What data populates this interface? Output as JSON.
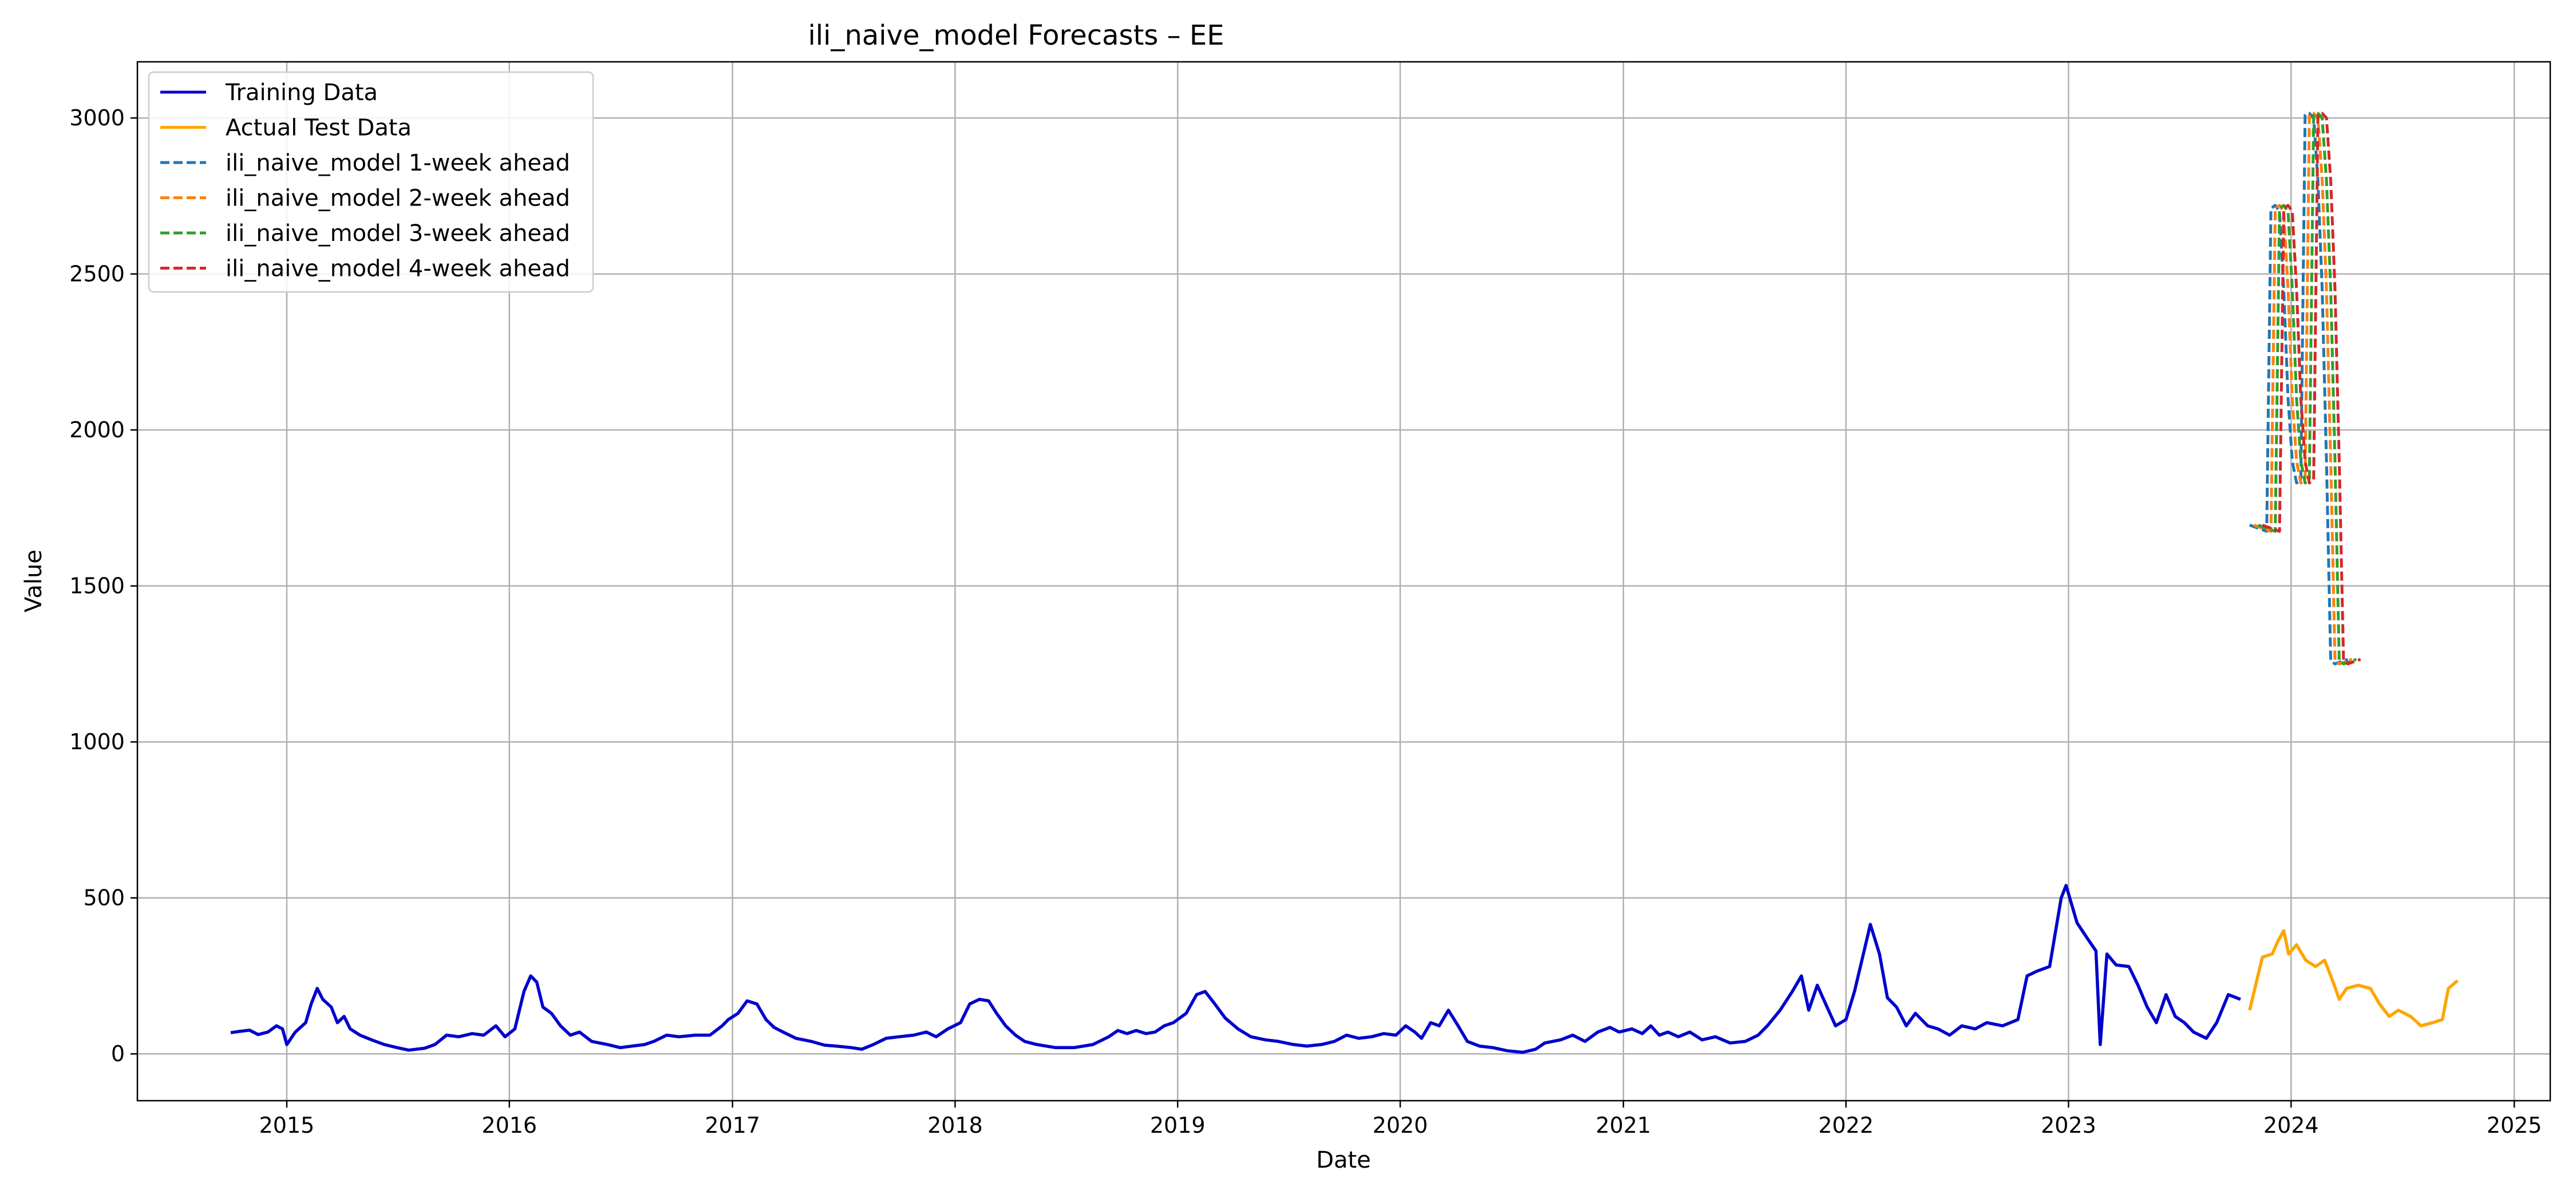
{
  "chart_data": {
    "type": "line",
    "title": "ili_naive_model Forecasts – EE",
    "xlabel": "Date",
    "ylabel": "Value",
    "x_axis_type": "date",
    "xlim": [
      "2014-05-01",
      "2025-03-01"
    ],
    "ylim": [
      -150,
      3180
    ],
    "x_ticks": [
      {
        "date": "2015-01-01",
        "label": "2015"
      },
      {
        "date": "2016-01-01",
        "label": "2016"
      },
      {
        "date": "2017-01-01",
        "label": "2017"
      },
      {
        "date": "2018-01-01",
        "label": "2018"
      },
      {
        "date": "2019-01-01",
        "label": "2019"
      },
      {
        "date": "2020-01-01",
        "label": "2020"
      },
      {
        "date": "2021-01-01",
        "label": "2021"
      },
      {
        "date": "2022-01-01",
        "label": "2022"
      },
      {
        "date": "2023-01-01",
        "label": "2023"
      },
      {
        "date": "2024-01-01",
        "label": "2024"
      },
      {
        "date": "2025-01-01",
        "label": "2025"
      }
    ],
    "y_ticks": [
      0,
      500,
      1000,
      1500,
      2000,
      2500,
      3000
    ],
    "grid": true,
    "legend_position": "top-left",
    "series": [
      {
        "name": "Training Data",
        "color": "#0000cd",
        "style": "solid",
        "points": [
          [
            "2014-10-01",
            68
          ],
          [
            "2014-10-15",
            72
          ],
          [
            "2014-11-01",
            76
          ],
          [
            "2014-11-15",
            62
          ],
          [
            "2014-12-01",
            70
          ],
          [
            "2014-12-15",
            90
          ],
          [
            "2014-12-25",
            80
          ],
          [
            "2015-01-01",
            30
          ],
          [
            "2015-01-15",
            70
          ],
          [
            "2015-02-01",
            100
          ],
          [
            "2015-02-10",
            160
          ],
          [
            "2015-02-20",
            210
          ],
          [
            "2015-03-01",
            175
          ],
          [
            "2015-03-15",
            150
          ],
          [
            "2015-03-25",
            100
          ],
          [
            "2015-04-05",
            120
          ],
          [
            "2015-04-15",
            80
          ],
          [
            "2015-05-01",
            60
          ],
          [
            "2015-05-20",
            45
          ],
          [
            "2015-06-10",
            30
          ],
          [
            "2015-07-01",
            20
          ],
          [
            "2015-07-20",
            12
          ],
          [
            "2015-08-15",
            18
          ],
          [
            "2015-09-01",
            30
          ],
          [
            "2015-09-20",
            60
          ],
          [
            "2015-10-10",
            55
          ],
          [
            "2015-11-01",
            65
          ],
          [
            "2015-11-20",
            60
          ],
          [
            "2015-12-10",
            90
          ],
          [
            "2015-12-25",
            55
          ],
          [
            "2016-01-10",
            80
          ],
          [
            "2016-01-25",
            200
          ],
          [
            "2016-02-05",
            250
          ],
          [
            "2016-02-15",
            230
          ],
          [
            "2016-02-25",
            150
          ],
          [
            "2016-03-10",
            130
          ],
          [
            "2016-03-25",
            90
          ],
          [
            "2016-04-10",
            60
          ],
          [
            "2016-04-25",
            70
          ],
          [
            "2016-05-15",
            40
          ],
          [
            "2016-06-10",
            30
          ],
          [
            "2016-07-01",
            20
          ],
          [
            "2016-07-20",
            25
          ],
          [
            "2016-08-10",
            30
          ],
          [
            "2016-08-25",
            40
          ],
          [
            "2016-09-15",
            60
          ],
          [
            "2016-10-05",
            55
          ],
          [
            "2016-11-01",
            60
          ],
          [
            "2016-11-25",
            60
          ],
          [
            "2016-12-15",
            90
          ],
          [
            "2016-12-25",
            110
          ],
          [
            "2017-01-10",
            130
          ],
          [
            "2017-01-25",
            170
          ],
          [
            "2017-02-10",
            160
          ],
          [
            "2017-02-25",
            110
          ],
          [
            "2017-03-10",
            85
          ],
          [
            "2017-03-25",
            70
          ],
          [
            "2017-04-15",
            50
          ],
          [
            "2017-05-10",
            40
          ],
          [
            "2017-06-01",
            28
          ],
          [
            "2017-06-20",
            25
          ],
          [
            "2017-07-15",
            20
          ],
          [
            "2017-08-01",
            15
          ],
          [
            "2017-08-20",
            30
          ],
          [
            "2017-09-10",
            50
          ],
          [
            "2017-10-01",
            55
          ],
          [
            "2017-10-25",
            60
          ],
          [
            "2017-11-15",
            70
          ],
          [
            "2017-12-01",
            55
          ],
          [
            "2017-12-20",
            80
          ],
          [
            "2018-01-10",
            100
          ],
          [
            "2018-01-25",
            160
          ],
          [
            "2018-02-10",
            175
          ],
          [
            "2018-02-25",
            170
          ],
          [
            "2018-03-10",
            130
          ],
          [
            "2018-03-25",
            90
          ],
          [
            "2018-04-10",
            60
          ],
          [
            "2018-04-25",
            40
          ],
          [
            "2018-05-15",
            30
          ],
          [
            "2018-06-15",
            20
          ],
          [
            "2018-07-15",
            20
          ],
          [
            "2018-08-15",
            30
          ],
          [
            "2018-09-10",
            55
          ],
          [
            "2018-09-25",
            75
          ],
          [
            "2018-10-10",
            65
          ],
          [
            "2018-10-25",
            75
          ],
          [
            "2018-11-10",
            65
          ],
          [
            "2018-11-25",
            70
          ],
          [
            "2018-12-10",
            90
          ],
          [
            "2018-12-25",
            100
          ],
          [
            "2019-01-15",
            130
          ],
          [
            "2019-02-01",
            190
          ],
          [
            "2019-02-15",
            200
          ],
          [
            "2019-03-01",
            165
          ],
          [
            "2019-03-20",
            115
          ],
          [
            "2019-04-10",
            80
          ],
          [
            "2019-05-01",
            55
          ],
          [
            "2019-05-25",
            45
          ],
          [
            "2019-06-15",
            40
          ],
          [
            "2019-07-10",
            30
          ],
          [
            "2019-08-01",
            25
          ],
          [
            "2019-08-25",
            30
          ],
          [
            "2019-09-15",
            40
          ],
          [
            "2019-10-05",
            60
          ],
          [
            "2019-10-25",
            50
          ],
          [
            "2019-11-15",
            55
          ],
          [
            "2019-12-05",
            65
          ],
          [
            "2019-12-25",
            60
          ],
          [
            "2020-01-10",
            90
          ],
          [
            "2020-01-25",
            70
          ],
          [
            "2020-02-05",
            50
          ],
          [
            "2020-02-20",
            100
          ],
          [
            "2020-03-05",
            90
          ],
          [
            "2020-03-20",
            140
          ],
          [
            "2020-04-05",
            90
          ],
          [
            "2020-04-20",
            40
          ],
          [
            "2020-05-10",
            25
          ],
          [
            "2020-06-01",
            20
          ],
          [
            "2020-06-25",
            10
          ],
          [
            "2020-07-20",
            5
          ],
          [
            "2020-08-10",
            15
          ],
          [
            "2020-08-25",
            35
          ],
          [
            "2020-09-20",
            45
          ],
          [
            "2020-10-10",
            60
          ],
          [
            "2020-10-30",
            40
          ],
          [
            "2020-11-20",
            70
          ],
          [
            "2020-12-10",
            85
          ],
          [
            "2020-12-25",
            70
          ],
          [
            "2021-01-15",
            80
          ],
          [
            "2021-02-01",
            65
          ],
          [
            "2021-02-15",
            90
          ],
          [
            "2021-03-01",
            60
          ],
          [
            "2021-03-15",
            70
          ],
          [
            "2021-04-01",
            55
          ],
          [
            "2021-04-20",
            70
          ],
          [
            "2021-05-10",
            45
          ],
          [
            "2021-06-01",
            55
          ],
          [
            "2021-06-25",
            35
          ],
          [
            "2021-07-20",
            40
          ],
          [
            "2021-08-10",
            60
          ],
          [
            "2021-08-25",
            90
          ],
          [
            "2021-09-15",
            140
          ],
          [
            "2021-10-05",
            200
          ],
          [
            "2021-10-20",
            250
          ],
          [
            "2021-11-01",
            140
          ],
          [
            "2021-11-15",
            220
          ],
          [
            "2021-12-01",
            150
          ],
          [
            "2021-12-15",
            90
          ],
          [
            "2022-01-01",
            110
          ],
          [
            "2022-01-15",
            200
          ],
          [
            "2022-02-01",
            340
          ],
          [
            "2022-02-10",
            415
          ],
          [
            "2022-02-25",
            320
          ],
          [
            "2022-03-10",
            180
          ],
          [
            "2022-03-25",
            150
          ],
          [
            "2022-04-10",
            90
          ],
          [
            "2022-04-25",
            130
          ],
          [
            "2022-05-15",
            90
          ],
          [
            "2022-06-01",
            80
          ],
          [
            "2022-06-20",
            60
          ],
          [
            "2022-07-10",
            90
          ],
          [
            "2022-08-01",
            80
          ],
          [
            "2022-08-20",
            100
          ],
          [
            "2022-09-15",
            90
          ],
          [
            "2022-10-10",
            110
          ],
          [
            "2022-10-25",
            250
          ],
          [
            "2022-11-10",
            265
          ],
          [
            "2022-12-01",
            280
          ],
          [
            "2022-12-20",
            500
          ],
          [
            "2022-12-28",
            540
          ],
          [
            "2023-01-15",
            420
          ],
          [
            "2023-02-01",
            370
          ],
          [
            "2023-02-15",
            330
          ],
          [
            "2023-02-22",
            30
          ],
          [
            "2023-03-05",
            320
          ],
          [
            "2023-03-20",
            285
          ],
          [
            "2023-04-10",
            280
          ],
          [
            "2023-04-25",
            220
          ],
          [
            "2023-05-10",
            150
          ],
          [
            "2023-05-25",
            100
          ],
          [
            "2023-06-10",
            190
          ],
          [
            "2023-06-25",
            120
          ],
          [
            "2023-07-10",
            100
          ],
          [
            "2023-07-25",
            70
          ],
          [
            "2023-08-15",
            50
          ],
          [
            "2023-09-01",
            100
          ],
          [
            "2023-09-20",
            190
          ],
          [
            "2023-10-10",
            175
          ]
        ]
      },
      {
        "name": "Actual Test Data",
        "color": "#ffa500",
        "style": "solid",
        "points": [
          [
            "2023-10-25",
            140
          ],
          [
            "2023-11-05",
            230
          ],
          [
            "2023-11-15",
            310
          ],
          [
            "2023-12-01",
            320
          ],
          [
            "2023-12-10",
            360
          ],
          [
            "2023-12-20",
            395
          ],
          [
            "2023-12-28",
            320
          ],
          [
            "2024-01-10",
            350
          ],
          [
            "2024-01-25",
            300
          ],
          [
            "2024-02-10",
            280
          ],
          [
            "2024-02-25",
            300
          ],
          [
            "2024-03-10",
            230
          ],
          [
            "2024-03-20",
            175
          ],
          [
            "2024-04-01",
            210
          ],
          [
            "2024-04-20",
            220
          ],
          [
            "2024-05-10",
            210
          ],
          [
            "2024-05-25",
            160
          ],
          [
            "2024-06-10",
            120
          ],
          [
            "2024-06-25",
            140
          ],
          [
            "2024-07-15",
            120
          ],
          [
            "2024-08-01",
            90
          ],
          [
            "2024-08-20",
            100
          ],
          [
            "2024-09-05",
            110
          ],
          [
            "2024-09-15",
            210
          ],
          [
            "2024-09-30",
            235
          ]
        ]
      },
      {
        "name": "ili_naive_model 1-week ahead",
        "color": "#1f77b4",
        "style": "dashed",
        "offset_weeks": 0,
        "points": []
      },
      {
        "name": "ili_naive_model 2-week ahead",
        "color": "#ff7f0e",
        "style": "dashed",
        "offset_weeks": 1,
        "points": []
      },
      {
        "name": "ili_naive_model 3-week ahead",
        "color": "#2ca02c",
        "style": "dashed",
        "offset_weeks": 2,
        "points": []
      },
      {
        "name": "ili_naive_model 4-week ahead",
        "color": "#d62728",
        "style": "dashed",
        "offset_weeks": 3,
        "points": []
      }
    ],
    "forecast_weekly_values": {
      "start": "2023-10-25",
      "values": [
        1695,
        1690,
        1685,
        1680,
        1675,
        2710,
        2720,
        2700,
        2450,
        2100,
        1900,
        1830,
        1840,
        3010,
        3015,
        3000,
        2800,
        2450,
        1900,
        1260,
        1250,
        1255,
        1260,
        1265
      ]
    }
  }
}
